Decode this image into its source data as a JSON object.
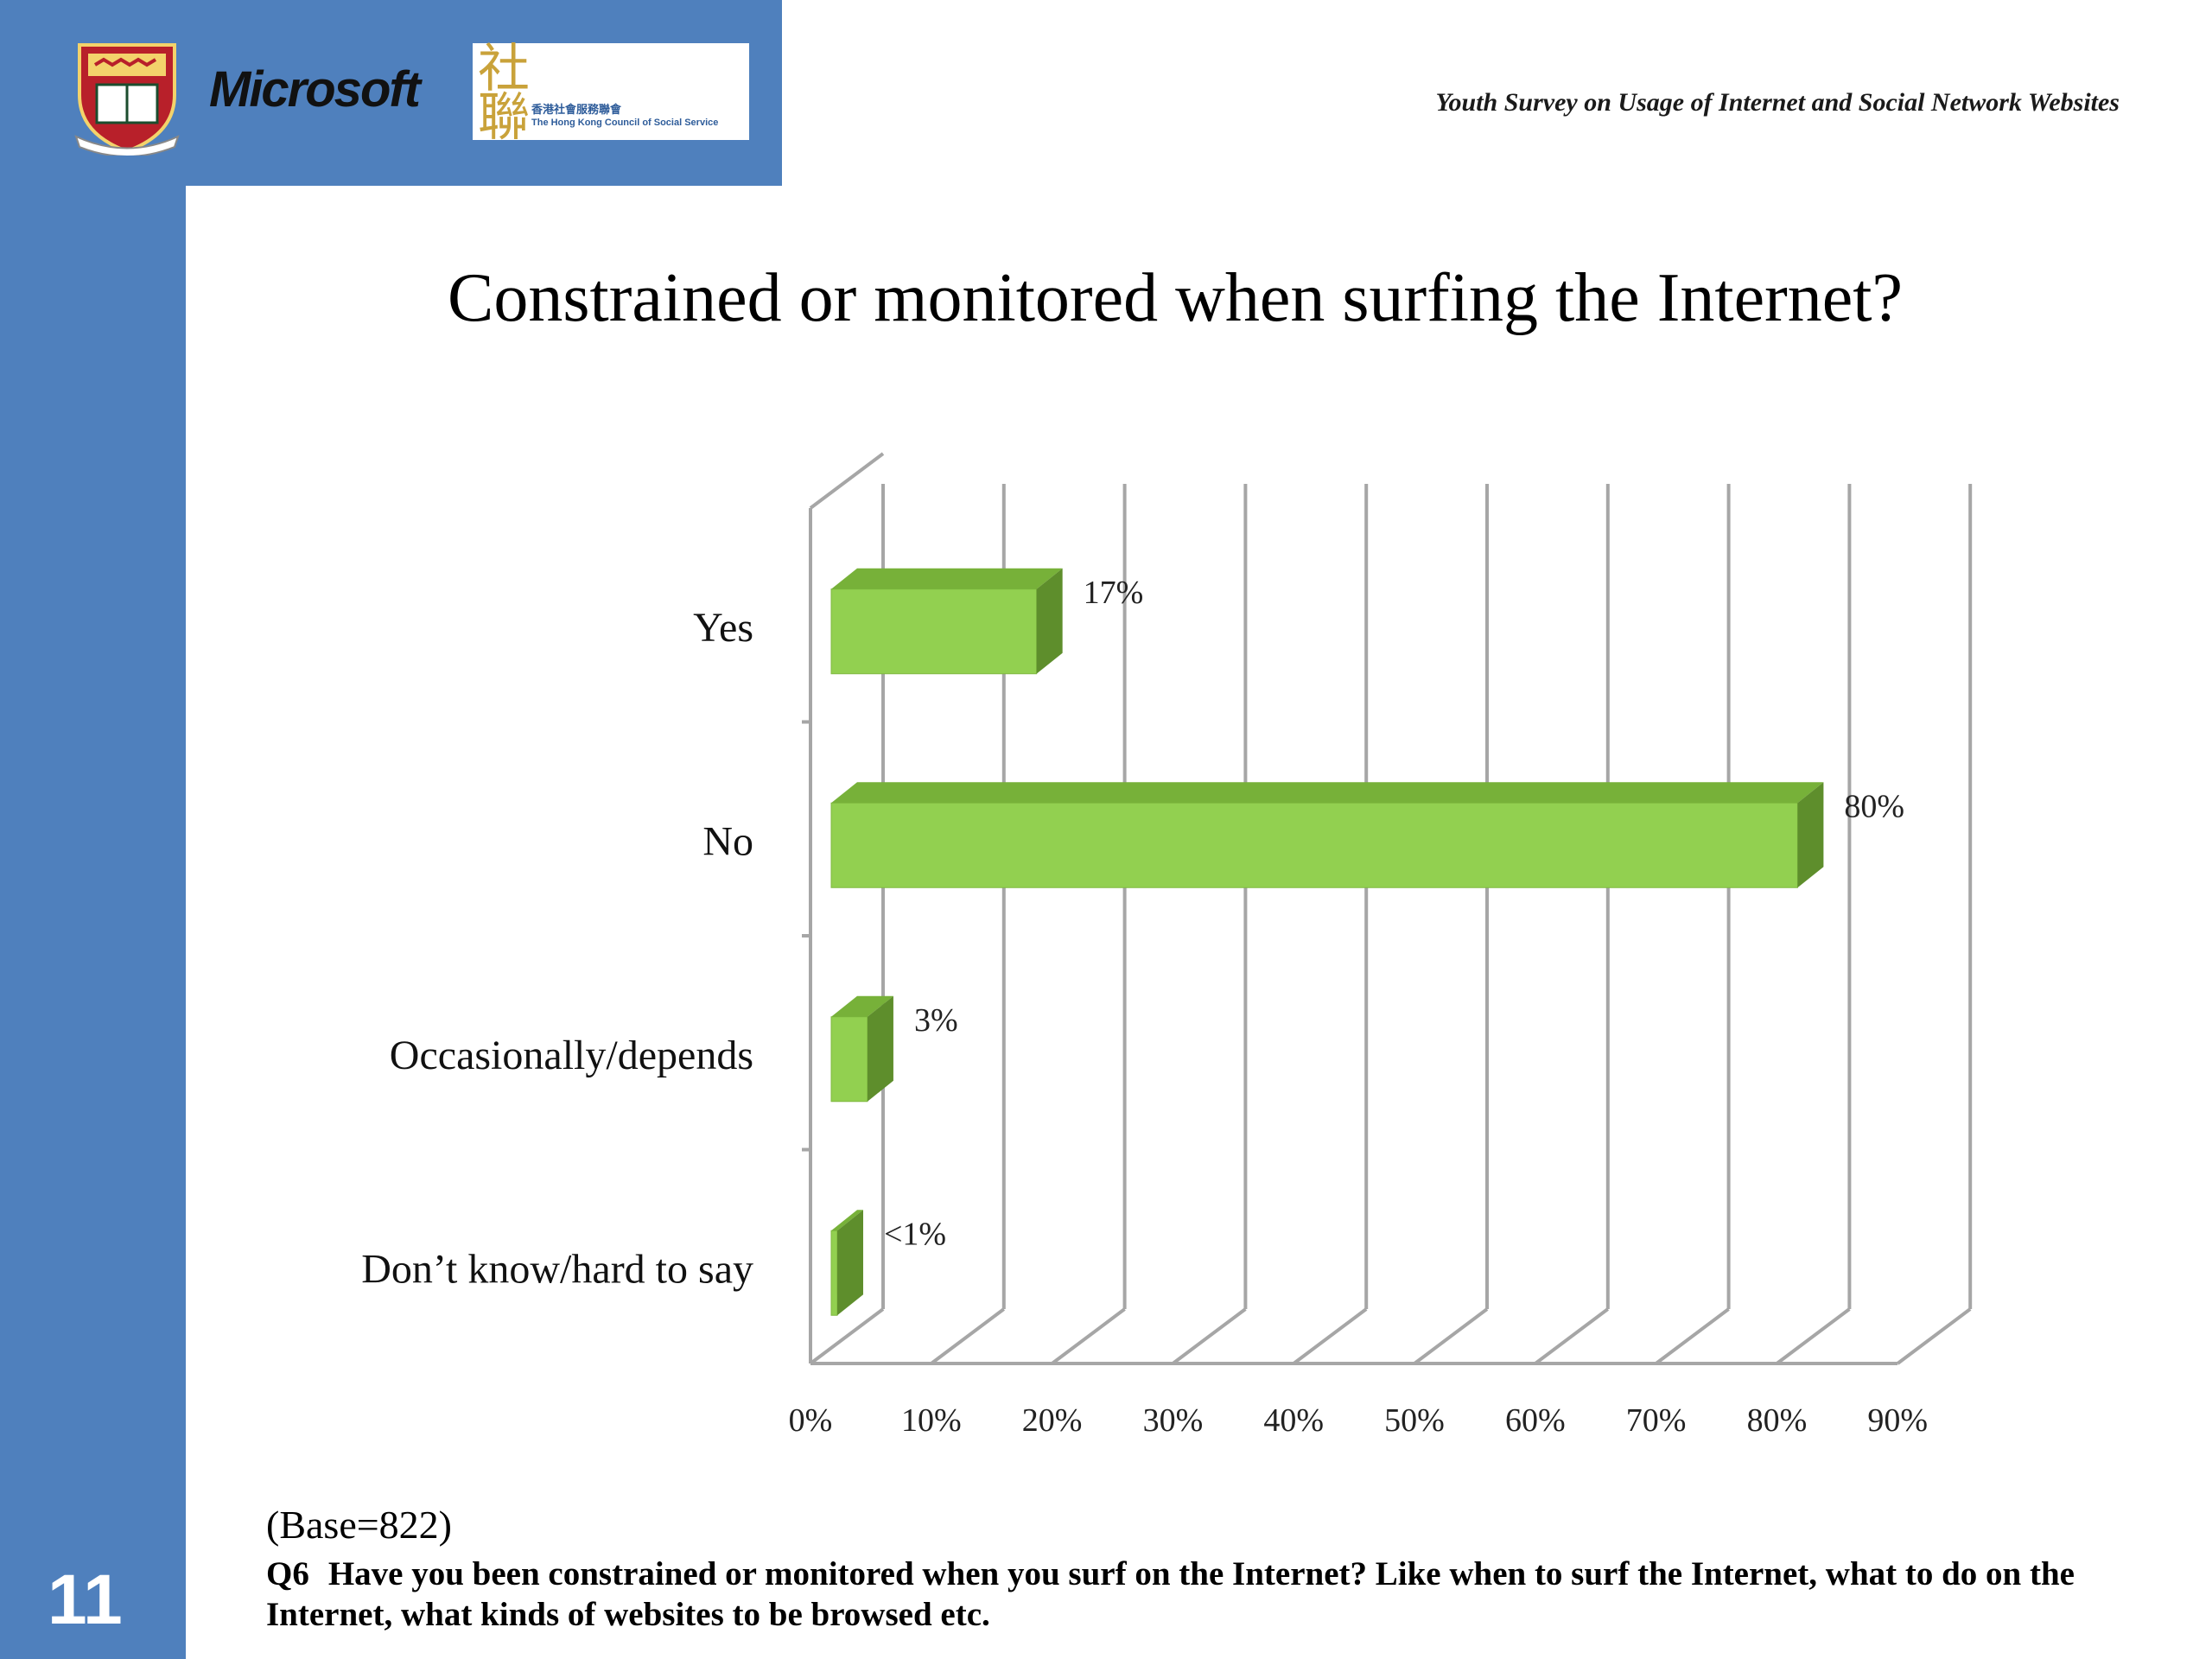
{
  "header": {
    "microsoft_label": "Microsoft",
    "hkcss_mark": "社聯",
    "hkcss_name_zh": "香港社會服務聯會",
    "hkcss_name_en": "The Hong Kong Council of Social Service",
    "survey_title": "Youth Survey on Usage of Internet and Social Network Websites"
  },
  "slide": {
    "title": "Constrained or monitored when surfing the Internet?",
    "base_note": "(Base=822)",
    "question_number": "Q6",
    "question_text": "Have you been constrained or monitored when you surf on the Internet? Like when to surf the Internet, what to do on the Internet, what kinds of websites to be browsed etc.",
    "page_number": "11"
  },
  "colors": {
    "sidebar_blue": "#4f80bd",
    "bar_front": "#92d050",
    "bar_top": "#77b139",
    "bar_side": "#5e8e2c",
    "grid": "#a6a6a6"
  },
  "chart_data": {
    "type": "bar",
    "orientation": "horizontal",
    "style": "3d",
    "categories": [
      "Yes",
      "No",
      "Occasionally/depends",
      "Don’t know/hard to say"
    ],
    "values": [
      17,
      80,
      3,
      0.5
    ],
    "data_labels": [
      "17%",
      "80%",
      "3%",
      "<1%"
    ],
    "xlim": [
      0,
      90
    ],
    "x_ticks": [
      "0%",
      "10%",
      "20%",
      "30%",
      "40%",
      "50%",
      "60%",
      "70%",
      "80%",
      "90%"
    ],
    "grid": true,
    "legend": "none"
  }
}
